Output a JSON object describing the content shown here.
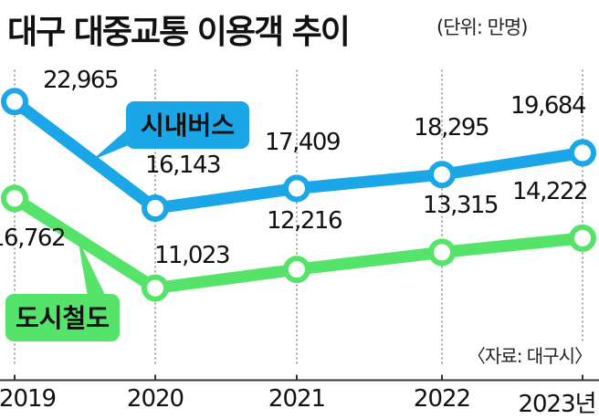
{
  "title": "대구 대중교통 이용객 추이",
  "unit": "(단위: 만명)",
  "source": "〈자료: 대구시〉",
  "colors": {
    "bus": "#1ba6e8",
    "rail": "#55e36a",
    "axis": "#333333",
    "grid": "#888888"
  },
  "chart_data": {
    "type": "line",
    "categories": [
      "2019",
      "2020",
      "2021",
      "2022",
      "2023년"
    ],
    "series": [
      {
        "name": "시내버스",
        "values": [
          22965,
          16143,
          17409,
          18295,
          19684
        ],
        "labels": [
          "22,965",
          "16,143",
          "17,409",
          "18,295",
          "19,684"
        ]
      },
      {
        "name": "도시철도",
        "values": [
          16762,
          11023,
          12216,
          13315,
          14222
        ],
        "labels": [
          "16,762",
          "11,023",
          "12,216",
          "13,315",
          "14,222"
        ]
      }
    ],
    "ylim": [
      6000,
      25000
    ],
    "grid": "vertical dotted",
    "legend": "inline callouts"
  }
}
